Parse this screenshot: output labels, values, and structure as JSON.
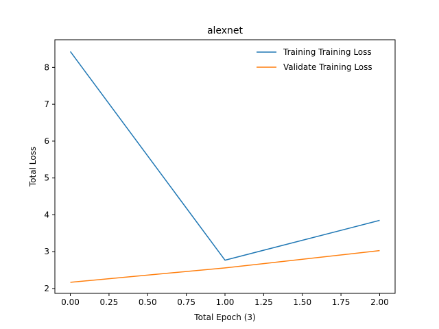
{
  "chart_data": {
    "type": "line",
    "title": "alexnet",
    "xlabel": "Total Epoch (3)",
    "ylabel": "Total Loss",
    "xlim": [
      -0.1,
      2.1
    ],
    "ylim": [
      1.87,
      8.75
    ],
    "xticks": [
      0.0,
      0.25,
      0.5,
      0.75,
      1.0,
      1.25,
      1.5,
      1.75,
      2.0
    ],
    "xtick_labels": [
      "0.00",
      "0.25",
      "0.50",
      "0.75",
      "1.00",
      "1.25",
      "1.50",
      "1.75",
      "2.00"
    ],
    "yticks": [
      2,
      3,
      4,
      5,
      6,
      7,
      8
    ],
    "ytick_labels": [
      "2",
      "3",
      "4",
      "5",
      "6",
      "7",
      "8"
    ],
    "grid": false,
    "legend_position": "top-right",
    "x": [
      0,
      1,
      2
    ],
    "series": [
      {
        "name": "Training Training Loss",
        "color": "#1f77b4",
        "values": [
          8.43,
          2.77,
          3.85
        ]
      },
      {
        "name": "Validate Training Loss",
        "color": "#ff7f0e",
        "values": [
          2.17,
          2.56,
          3.03
        ]
      }
    ]
  }
}
